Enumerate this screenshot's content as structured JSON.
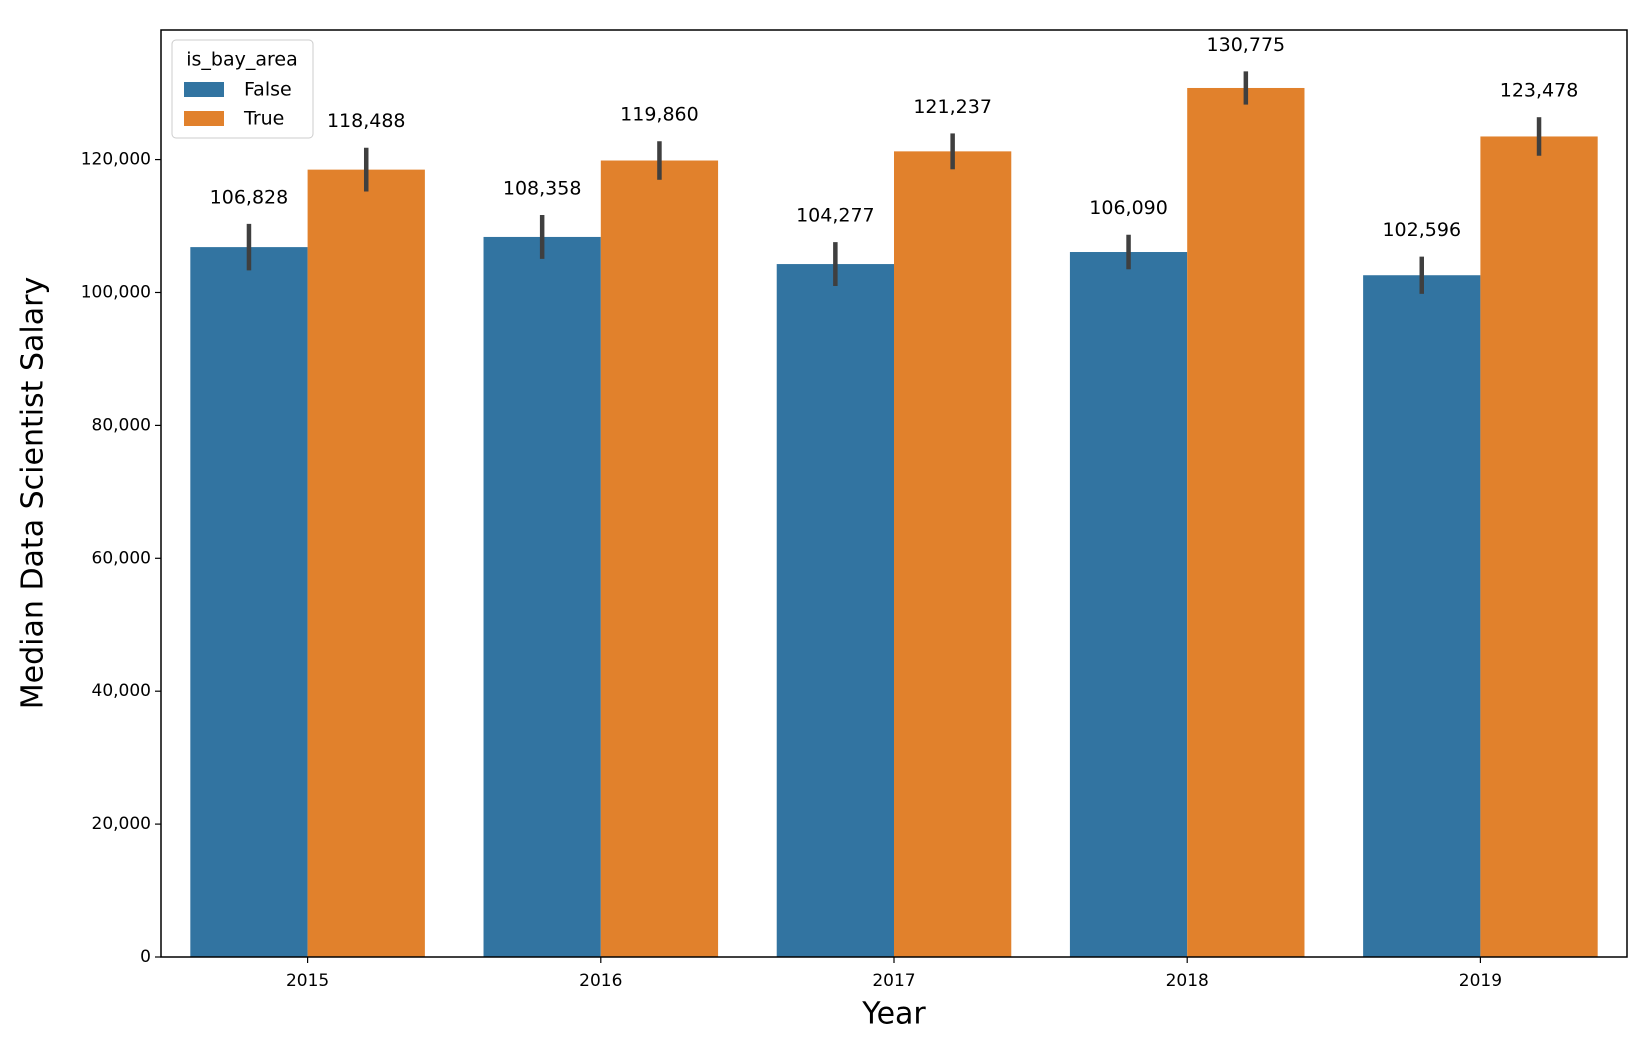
{
  "chart_data": {
    "type": "bar",
    "x_label": "Year",
    "y_label": "Median Data Scientist Salary",
    "legend_title": "is_bay_area",
    "legend_position": "upper left",
    "categories": [
      "2015",
      "2016",
      "2017",
      "2018",
      "2019"
    ],
    "series": [
      {
        "name": "False",
        "color": "#3274a1",
        "values": [
          106828,
          108358,
          104277,
          106090,
          102596
        ],
        "value_labels": [
          "106,828",
          "108,358",
          "104,277",
          "106,090",
          "102,596"
        ],
        "errors": [
          3500,
          3300,
          3300,
          2600,
          2800
        ]
      },
      {
        "name": "True",
        "color": "#e1812c",
        "values": [
          118488,
          119860,
          121237,
          130775,
          123478
        ],
        "value_labels": [
          "118,488",
          "119,860",
          "121,237",
          "130,775",
          "123,478"
        ],
        "errors": [
          3300,
          2900,
          2700,
          2500,
          2900
        ]
      }
    ],
    "ylim": [
      0,
      139500
    ],
    "yticks": [
      0,
      {
        "value": 20000,
        "label": "20,000"
      },
      {
        "value": 40000,
        "label": "40,000"
      },
      {
        "value": 60000,
        "label": "60,000"
      },
      {
        "value": 80000,
        "label": "80,000"
      },
      {
        "value": 100000,
        "label": "100,000"
      },
      {
        "value": 120000,
        "label": "120,000"
      }
    ],
    "error_color": "#3f3f3f",
    "grid": false
  }
}
